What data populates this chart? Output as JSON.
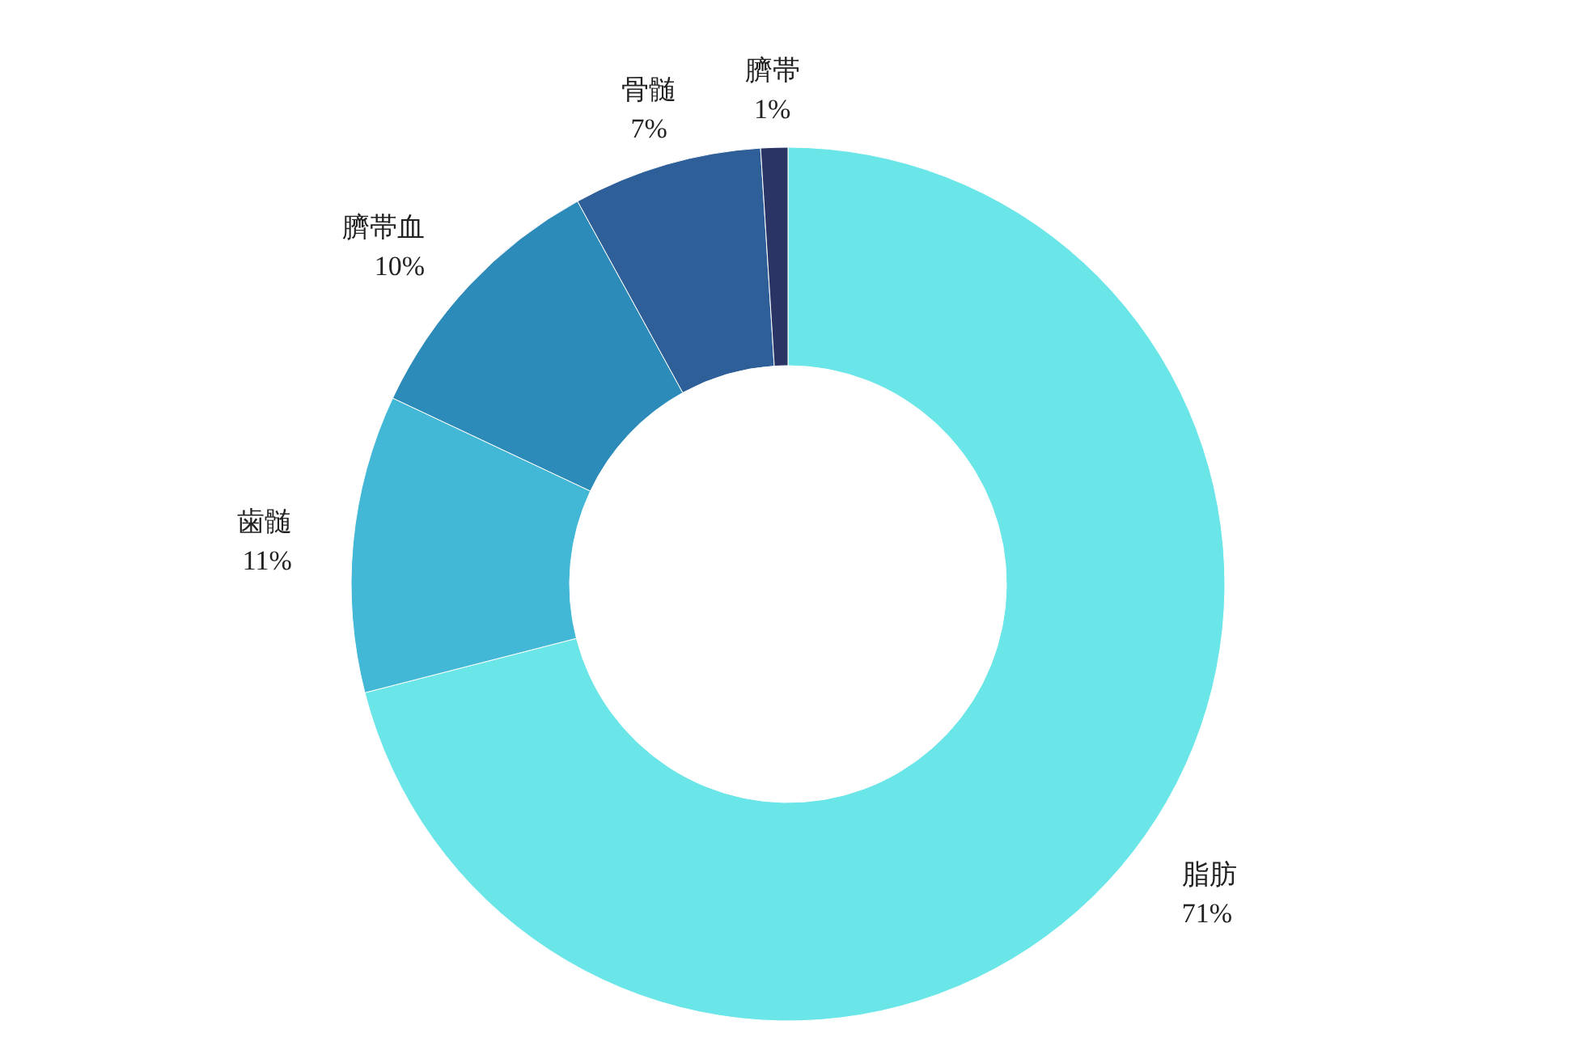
{
  "chart_data": {
    "type": "donut",
    "categories": [
      "脂肪",
      "歯髄",
      "臍帯血",
      "骨髄",
      "臍帯"
    ],
    "values": [
      71,
      11,
      10,
      7,
      1
    ],
    "colors": [
      "#6ae6e8",
      "#42b8d6",
      "#2c8bb8",
      "#2e5f98",
      "#2a3566"
    ],
    "value_labels": [
      "71%",
      "11%",
      "10%",
      "7%",
      "1%"
    ]
  }
}
